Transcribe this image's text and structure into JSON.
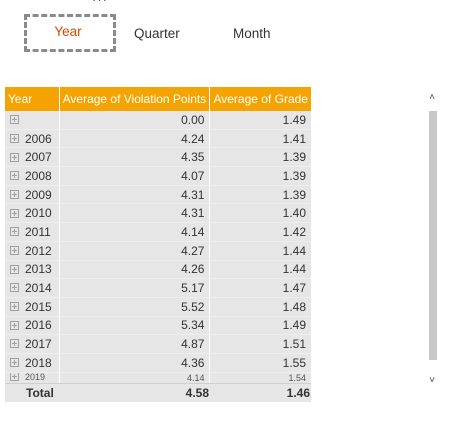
{
  "slicer": {
    "more_label": "···",
    "tabs": [
      "Year",
      "Quarter",
      "Month"
    ],
    "active": "Year"
  },
  "table": {
    "headers": [
      "Year",
      "Average of Violation Points",
      "Average of Grade"
    ],
    "rows": [
      {
        "year": "",
        "vp": "0.00",
        "grade": "1.49"
      },
      {
        "year": "2006",
        "vp": "4.24",
        "grade": "1.41"
      },
      {
        "year": "2007",
        "vp": "4.35",
        "grade": "1.39"
      },
      {
        "year": "2008",
        "vp": "4.07",
        "grade": "1.39"
      },
      {
        "year": "2009",
        "vp": "4.31",
        "grade": "1.39"
      },
      {
        "year": "2010",
        "vp": "4.31",
        "grade": "1.40"
      },
      {
        "year": "2011",
        "vp": "4.14",
        "grade": "1.42"
      },
      {
        "year": "2012",
        "vp": "4.27",
        "grade": "1.44"
      },
      {
        "year": "2013",
        "vp": "4.26",
        "grade": "1.44"
      },
      {
        "year": "2014",
        "vp": "5.17",
        "grade": "1.47"
      },
      {
        "year": "2015",
        "vp": "5.52",
        "grade": "1.48"
      },
      {
        "year": "2016",
        "vp": "5.34",
        "grade": "1.49"
      },
      {
        "year": "2017",
        "vp": "4.87",
        "grade": "1.51"
      },
      {
        "year": "2018",
        "vp": "4.36",
        "grade": "1.55"
      },
      {
        "year": "2019",
        "vp": "4.14",
        "grade": "1.54"
      }
    ],
    "total": {
      "label": "Total",
      "vp": "4.58",
      "grade": "1.46"
    }
  },
  "scrollbar": {
    "up": "˄",
    "down": "˅"
  },
  "colors": {
    "header_bg": "#f5a300",
    "active_tab": "#d24a00",
    "row_bg": "#e6e6e6"
  }
}
